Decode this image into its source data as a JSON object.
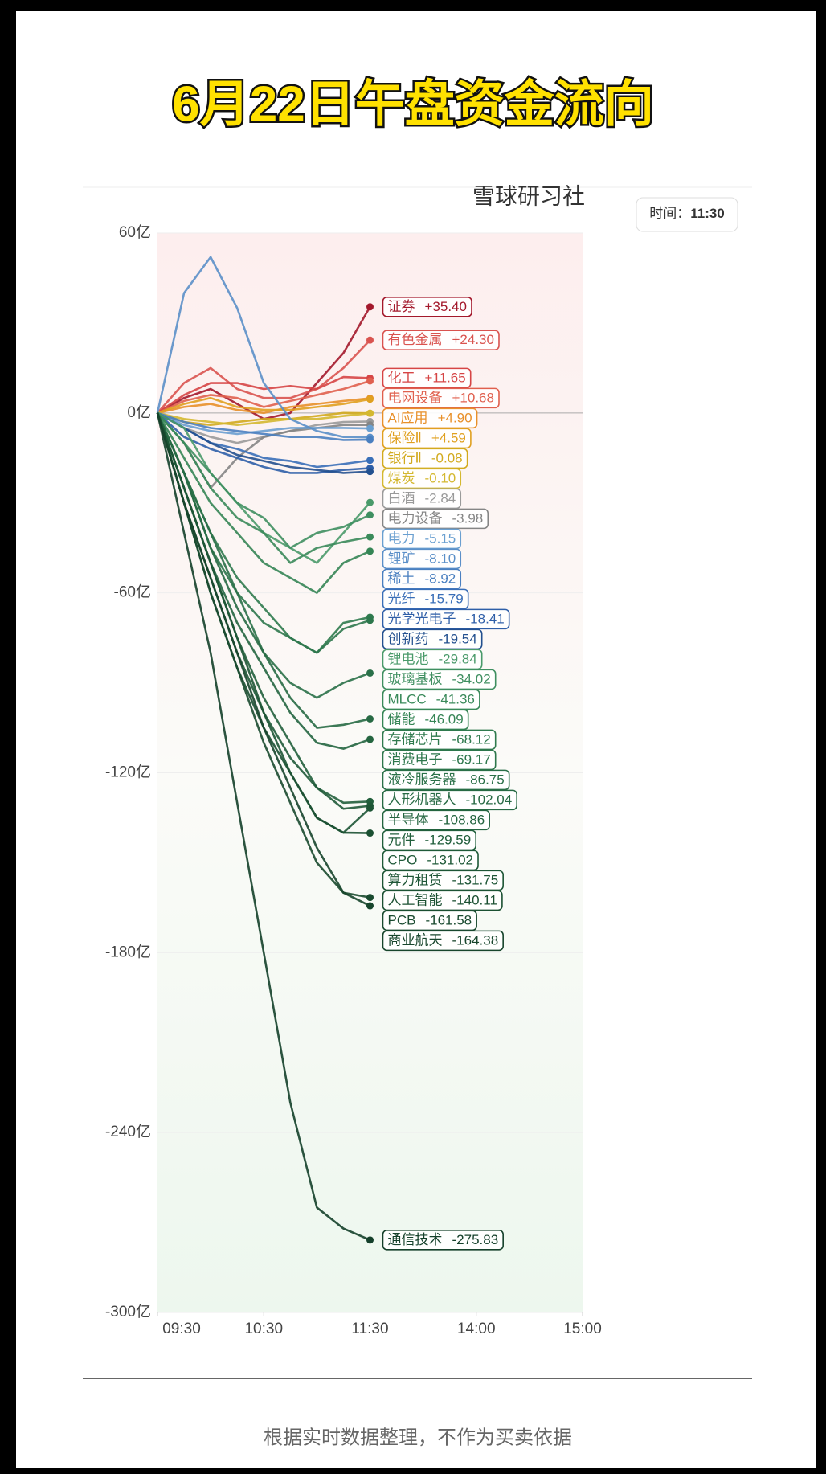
{
  "chart_data": {
    "type": "line",
    "title": "6月22日午盘资金流向",
    "subtitle": "雪球研习社",
    "time_label": "时间：",
    "time_value": "11:30",
    "x": [
      "09:30",
      "09:45",
      "10:00",
      "10:15",
      "10:30",
      "10:45",
      "11:00",
      "11:15",
      "11:30"
    ],
    "xlim": [
      "09:30",
      "15:00"
    ],
    "xticks": [
      "09:30",
      "10:30",
      "11:30",
      "14:00",
      "15:00"
    ],
    "ylim": [
      -300,
      60
    ],
    "yticks": [
      {
        "value": 60,
        "label": "60亿"
      },
      {
        "value": 0,
        "label": "0亿"
      },
      {
        "value": -60,
        "label": "-60亿"
      },
      {
        "value": -120,
        "label": "-120亿"
      },
      {
        "value": -180,
        "label": "-180亿"
      },
      {
        "value": -240,
        "label": "-240亿"
      },
      {
        "value": -300,
        "label": "-300亿"
      }
    ],
    "series": [
      {
        "name": "证券",
        "color": "#a3182b",
        "values": [
          0,
          5,
          8,
          3,
          -2,
          0,
          10,
          20,
          35.4
        ],
        "value_labels": [
          null,
          null,
          null,
          null,
          null,
          null,
          null,
          null,
          "+35.40"
        ]
      },
      {
        "name": "有色金属",
        "color": "#d9534f",
        "values": [
          0,
          10,
          15,
          8,
          5,
          5,
          8,
          15,
          24.3
        ],
        "value_labels": [
          null,
          null,
          null,
          null,
          null,
          null,
          null,
          null,
          "+24.30"
        ]
      },
      {
        "name": "化工",
        "color": "#d64545",
        "values": [
          0,
          6,
          10,
          10,
          8,
          9,
          8,
          12,
          11.65
        ],
        "value_labels": [
          null,
          null,
          null,
          null,
          null,
          null,
          null,
          null,
          "+11.65"
        ]
      },
      {
        "name": "电网设备",
        "color": "#e0604e",
        "values": [
          0,
          4,
          6,
          5,
          2,
          4,
          6,
          8,
          10.68
        ],
        "value_labels": [
          null,
          null,
          null,
          null,
          null,
          null,
          null,
          null,
          "+10.68"
        ]
      },
      {
        "name": "AI应用",
        "color": "#e8902a",
        "values": [
          0,
          2,
          3,
          1,
          0,
          2,
          3,
          4,
          4.9
        ],
        "value_labels": [
          null,
          null,
          null,
          null,
          null,
          null,
          null,
          null,
          "+4.90"
        ]
      },
      {
        "name": "保险Ⅱ",
        "color": "#e0a020",
        "values": [
          0,
          3,
          5,
          2,
          1,
          1,
          2,
          3,
          4.59
        ],
        "value_labels": [
          null,
          null,
          null,
          null,
          null,
          null,
          null,
          null,
          "+4.59"
        ]
      },
      {
        "name": "银行Ⅱ",
        "color": "#d2aa1e",
        "values": [
          0,
          -3,
          -4,
          -3,
          -2,
          -2,
          -1,
          0,
          -0.08
        ]
      },
      {
        "name": "煤炭",
        "color": "#d4b830",
        "values": [
          0,
          -2,
          -3,
          -4,
          -3,
          -2,
          -2,
          -1,
          -0.1
        ],
        "value_labels": [
          null,
          null,
          null,
          null,
          null,
          null,
          null,
          null,
          "-0.10"
        ]
      },
      {
        "name": "白酒",
        "color": "#9a9a9a",
        "values": [
          0,
          -5,
          -8,
          -10,
          -8,
          -6,
          -4,
          -3,
          -2.84
        ]
      },
      {
        "name": "电力设备",
        "color": "#858585",
        "values": [
          0,
          -10,
          -25,
          -15,
          -8,
          -6,
          -5,
          -4,
          -3.98
        ]
      },
      {
        "name": "电力",
        "color": "#6a9fd0",
        "values": [
          0,
          -4,
          -6,
          -7,
          -6,
          -5,
          -5,
          -5,
          -5.15
        ]
      },
      {
        "name": "锂矿",
        "color": "#5b8fc8",
        "values": [
          0,
          40,
          52,
          35,
          10,
          -2,
          -6,
          -8,
          -8.1
        ],
        "value_labels": [
          null,
          null,
          null,
          null,
          null,
          null,
          null,
          null,
          "-8.10"
        ]
      },
      {
        "name": "稀土",
        "color": "#4a7fc0",
        "values": [
          0,
          -3,
          -5,
          -6,
          -7,
          -8,
          -8,
          -9,
          -8.92
        ]
      },
      {
        "name": "光纤",
        "color": "#3a6fb8",
        "values": [
          0,
          -5,
          -10,
          -12,
          -15,
          -16,
          -18,
          -17,
          -15.79
        ]
      },
      {
        "name": "光学光电子",
        "color": "#2f5fa8",
        "values": [
          0,
          -8,
          -12,
          -15,
          -18,
          -20,
          -20,
          -19,
          -18.41
        ]
      },
      {
        "name": "创新药",
        "color": "#23508f",
        "values": [
          0,
          -5,
          -10,
          -14,
          -16,
          -18,
          -19,
          -20,
          -19.54
        ]
      },
      {
        "name": "锂电池",
        "color": "#4a9a6a",
        "values": [
          0,
          -5,
          -20,
          -30,
          -40,
          -45,
          -50,
          -40,
          -29.84
        ]
      },
      {
        "name": "玻璃基板",
        "color": "#3f8f60",
        "values": [
          0,
          -10,
          -20,
          -30,
          -35,
          -45,
          -40,
          -38,
          -34.02
        ]
      },
      {
        "name": "MLCC",
        "color": "#3a8a5a",
        "values": [
          0,
          -10,
          -25,
          -35,
          -40,
          -50,
          -45,
          -43,
          -41.36
        ]
      },
      {
        "name": "储能",
        "color": "#358555",
        "values": [
          0,
          -15,
          -30,
          -40,
          -50,
          -55,
          -60,
          -50,
          -46.09
        ]
      },
      {
        "name": "存储芯片",
        "color": "#2f7a4e",
        "values": [
          0,
          -20,
          -40,
          -55,
          -65,
          -75,
          -80,
          -70,
          -68.12
        ]
      },
      {
        "name": "消费电子",
        "color": "#2d774c",
        "values": [
          0,
          -20,
          -45,
          -60,
          -70,
          -75,
          -80,
          -72,
          -69.17
        ]
      },
      {
        "name": "液冷服务器",
        "color": "#2a7048",
        "values": [
          0,
          -20,
          -40,
          -60,
          -80,
          -90,
          -95,
          -90,
          -86.75
        ]
      },
      {
        "name": "人形机器人",
        "color": "#276a44",
        "values": [
          0,
          -20,
          -45,
          -65,
          -80,
          -95,
          -105,
          -104,
          -102.04
        ]
      },
      {
        "name": "半导体",
        "color": "#246540",
        "values": [
          0,
          -25,
          -50,
          -70,
          -85,
          -100,
          -110,
          -112,
          -108.86
        ]
      },
      {
        "name": "元件",
        "color": "#215f3c",
        "values": [
          0,
          -25,
          -50,
          -75,
          -95,
          -110,
          -125,
          -130,
          -129.59
        ]
      },
      {
        "name": "CPO",
        "color": "#1f5a38",
        "values": [
          0,
          -30,
          -55,
          -80,
          -100,
          -115,
          -125,
          -132,
          -131.02
        ]
      },
      {
        "name": "算力租赁",
        "color": "#1d5535",
        "values": [
          0,
          -25,
          -50,
          -75,
          -100,
          -120,
          -135,
          -140,
          -131.75
        ]
      },
      {
        "name": "人工智能",
        "color": "#1b5032",
        "values": [
          0,
          -30,
          -60,
          -85,
          -105,
          -120,
          -135,
          -140,
          -140.11
        ]
      },
      {
        "name": "PCB",
        "color": "#194a2f",
        "values": [
          0,
          -30,
          -60,
          -85,
          -110,
          -130,
          -150,
          -160,
          -161.58
        ]
      },
      {
        "name": "商业航天",
        "color": "#17452c",
        "values": [
          0,
          -30,
          -55,
          -80,
          -105,
          -125,
          -145,
          -160,
          -164.38
        ]
      },
      {
        "name": "通信技术",
        "color": "#14402a",
        "values": [
          0,
          -40,
          -80,
          -130,
          -180,
          -230,
          -265,
          -272,
          -275.83
        ]
      }
    ]
  },
  "footer": "根据实时数据整理，不作为买卖依据"
}
